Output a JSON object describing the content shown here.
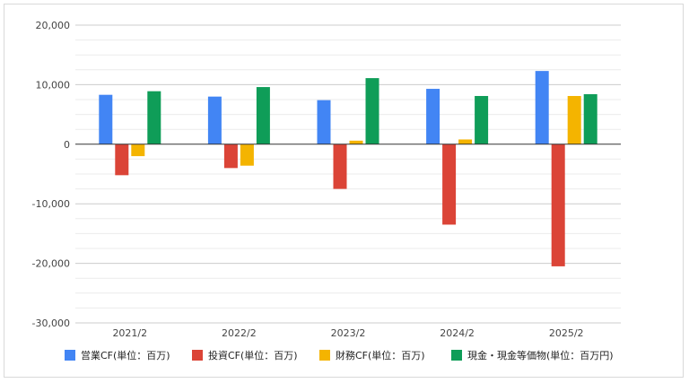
{
  "chart_data": {
    "type": "bar",
    "categories": [
      "2021/2",
      "2022/2",
      "2023/2",
      "2024/2",
      "2025/2"
    ],
    "series": [
      {
        "name": "営業CF(単位：百万)",
        "color": "#4285F4",
        "values": [
          8300,
          8000,
          7400,
          9300,
          12300
        ]
      },
      {
        "name": "投資CF(単位：百万)",
        "color": "#DB4437",
        "values": [
          -5200,
          -4000,
          -7500,
          -13500,
          -20500
        ]
      },
      {
        "name": "財務CF(単位：百万)",
        "color": "#F4B400",
        "values": [
          -2000,
          -3600,
          600,
          800,
          8100
        ]
      },
      {
        "name": "現金・現金等価物(単位：百万円)",
        "color": "#0F9D58",
        "values": [
          8900,
          9600,
          11100,
          8100,
          8400
        ]
      }
    ],
    "yticks": [
      "20,000",
      "10,000",
      "0",
      "-10,000",
      "-20,000",
      "-30,000"
    ],
    "ylim": [
      -30000,
      20000
    ],
    "grid": true,
    "legend": "bottom"
  }
}
